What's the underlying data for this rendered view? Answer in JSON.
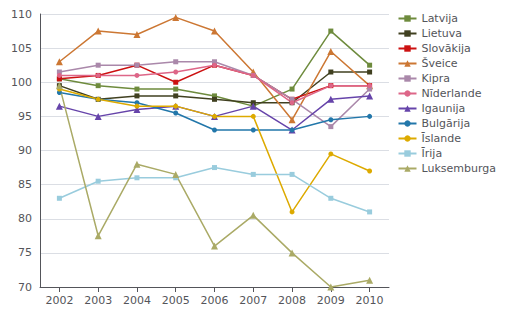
{
  "chart_data": {
    "type": "line",
    "x": [
      2002,
      2003,
      2004,
      2005,
      2006,
      2007,
      2008,
      2009,
      2010
    ],
    "xlim": [
      2001.5,
      2010.5
    ],
    "xticks": [
      2002,
      2003,
      2004,
      2005,
      2006,
      2007,
      2008,
      2009,
      2010
    ],
    "ylim": [
      70,
      110
    ],
    "yticks": [
      70,
      75,
      80,
      85,
      90,
      95,
      100,
      105,
      110
    ],
    "grid": true,
    "legend": "right",
    "series": [
      {
        "name": "Latvija",
        "color": "#6e8b3d",
        "marker": "square",
        "values": [
          100.5,
          99.5,
          99.0,
          99.0,
          98.0,
          96.5,
          99.0,
          107.5,
          102.5
        ]
      },
      {
        "name": "Lietuva",
        "color": "#404020",
        "marker": "square",
        "values": [
          99.5,
          97.5,
          98.0,
          98.0,
          97.5,
          97.0,
          97.0,
          101.5,
          101.5
        ]
      },
      {
        "name": "Slovākija",
        "color": "#cc1111",
        "marker": "square",
        "values": [
          100.5,
          101.0,
          102.5,
          100.0,
          102.5,
          101.0,
          97.5,
          99.5,
          99.5
        ]
      },
      {
        "name": "Šveice",
        "color": "#cc7733",
        "marker": "triangle",
        "values": [
          103.0,
          107.5,
          107.0,
          109.5,
          107.5,
          101.5,
          94.5,
          104.5,
          99.5
        ]
      },
      {
        "name": "Kipra",
        "color": "#aa88aa",
        "marker": "square",
        "values": [
          101.5,
          102.5,
          102.5,
          103.0,
          103.0,
          101.0,
          97.5,
          93.5,
          99.0
        ]
      },
      {
        "name": "Nīderlande",
        "color": "#dd6688",
        "marker": "circle",
        "values": [
          101.0,
          101.0,
          101.0,
          101.5,
          102.5,
          101.0,
          97.0,
          99.5,
          99.5
        ]
      },
      {
        "name": "Igaunija",
        "color": "#6644aa",
        "marker": "triangle",
        "values": [
          96.5,
          95.0,
          96.0,
          96.5,
          95.0,
          96.5,
          93.0,
          97.5,
          98.0
        ]
      },
      {
        "name": "Bulgārija",
        "color": "#2277aa",
        "marker": "circle",
        "values": [
          98.5,
          97.5,
          97.0,
          95.5,
          93.0,
          93.0,
          93.0,
          94.5,
          95.0
        ]
      },
      {
        "name": "Īslande",
        "color": "#ddaa00",
        "marker": "circle",
        "values": [
          99.0,
          97.5,
          96.5,
          96.5,
          95.0,
          95.0,
          81.0,
          89.5,
          87.0
        ]
      },
      {
        "name": "Īrija",
        "color": "#99ccdd",
        "marker": "square",
        "values": [
          83.0,
          85.5,
          86.0,
          86.0,
          87.5,
          86.5,
          86.5,
          83.0,
          81.0
        ]
      },
      {
        "name": "Luksemburga",
        "color": "#aaaa66",
        "marker": "triangle",
        "values": [
          99.5,
          77.5,
          88.0,
          86.5,
          76.0,
          80.5,
          75.0,
          70.0,
          71.0
        ]
      }
    ]
  }
}
